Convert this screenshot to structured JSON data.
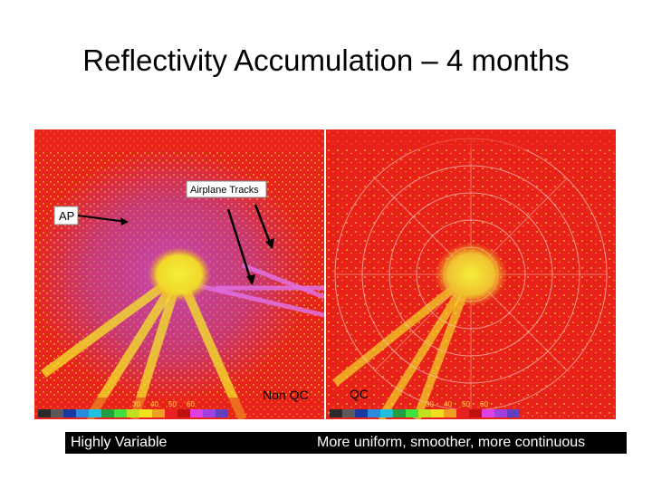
{
  "title": "Reflectivity Accumulation – 4 months",
  "left": {
    "annotation_ap": "AP",
    "annotation_tracks": "Airplane Tracks",
    "label": "Non QC",
    "caption": "Highly Variable"
  },
  "right": {
    "label": "QC",
    "caption": "More uniform, smoother, more continuous"
  },
  "colors": {
    "background_red": "#e8221a",
    "orange": "#f08a1e",
    "yellow": "#f4e82a",
    "magenta": "#c040c0",
    "label_text": "#000000"
  },
  "colorbar": [
    "#2a2a2a",
    "#5a5a5a",
    "#1a3aa0",
    "#2a8ae0",
    "#20c0e0",
    "#20a040",
    "#40e040",
    "#c0e020",
    "#f0e020",
    "#f0a020",
    "#e82020",
    "#c01010",
    "#e040e0",
    "#a040e0",
    "#6040c0"
  ]
}
